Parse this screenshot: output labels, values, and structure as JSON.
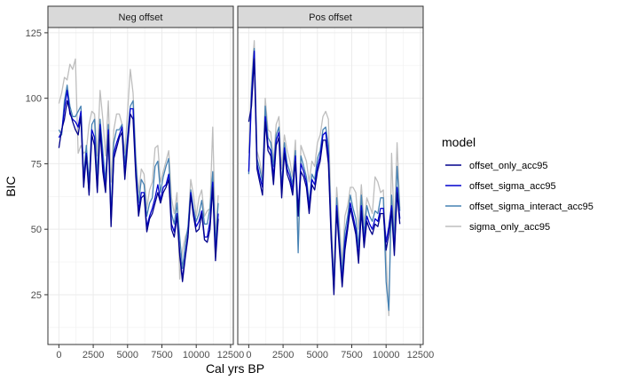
{
  "chart_data": {
    "type": "line",
    "xlabel": "Cal yrs BP",
    "ylabel": "BIC",
    "xlim": [
      -800,
      12700
    ],
    "ylim": [
      6,
      127
    ],
    "x_ticks": [
      0,
      2500,
      5000,
      7500,
      10000,
      12500
    ],
    "x_tick_labels": [
      "0",
      "2500",
      "5000",
      "7500",
      "10000",
      "12500"
    ],
    "y_ticks": [
      25,
      50,
      75,
      100,
      125
    ],
    "y_tick_labels": [
      "25",
      "50",
      "75",
      "100",
      "125"
    ],
    "grid": true,
    "legend_title": "model",
    "legend_position": "right",
    "series_styles": [
      {
        "name": "offset_only_acc95",
        "color": "#00008b"
      },
      {
        "name": "offset_sigma_acc95",
        "color": "#0000cd"
      },
      {
        "name": "offset_sigma_interact_acc95",
        "color": "#4682b4"
      },
      {
        "name": "sigma_only_acc95",
        "color": "#bebebe"
      }
    ],
    "panels": [
      {
        "label": "Neg offset",
        "x": [
          0,
          200,
          400,
          600,
          800,
          1000,
          1200,
          1400,
          1600,
          1800,
          2000,
          2200,
          2400,
          2600,
          2800,
          3000,
          3200,
          3400,
          3600,
          3800,
          4000,
          4200,
          4400,
          4600,
          4800,
          5000,
          5200,
          5400,
          5600,
          5800,
          6000,
          6200,
          6400,
          6600,
          6800,
          7000,
          7200,
          7400,
          7600,
          7800,
          8000,
          8200,
          8400,
          8600,
          8800,
          9000,
          9200,
          9400,
          9600,
          9800,
          10000,
          10200,
          10400,
          10600,
          10800,
          11000,
          11200,
          11400,
          11600,
          11800,
          12000
        ],
        "series": [
          {
            "name": "offset_only_acc95",
            "values": [
              81,
              88,
              92,
              99,
              95,
              91,
              88,
              86,
              93,
              66,
              78,
              63,
              86,
              82,
              64,
              88,
              72,
              64,
              86,
              51,
              77,
              81,
              85,
              87,
              69,
              82,
              94,
              92,
              70,
              55,
              62,
              63,
              49,
              54,
              56,
              60,
              64,
              60,
              64,
              66,
              69,
              50,
              47,
              55,
              40,
              30,
              39,
              47,
              63,
              55,
              49,
              50,
              56,
              46,
              45,
              50,
              66,
              38,
              54,
              null,
              null
            ]
          },
          {
            "name": "offset_sigma_acc95",
            "values": [
              85,
              87,
              96,
              103,
              94,
              92,
              91,
              89,
              95,
              68,
              79,
              64,
              88,
              85,
              65,
              90,
              76,
              65,
              88,
              53,
              79,
              83,
              86,
              89,
              71,
              84,
              96,
              96,
              72,
              57,
              64,
              64,
              51,
              55,
              58,
              62,
              67,
              61,
              66,
              67,
              71,
              52,
              49,
              56,
              41,
              31,
              40,
              48,
              64,
              56,
              51,
              53,
              57,
              47,
              47,
              53,
              68,
              40,
              56,
              null,
              null
            ]
          },
          {
            "name": "offset_sigma_interact_acc95",
            "values": [
              88,
              86,
              99,
              105,
              97,
              93,
              93,
              95,
              97,
              70,
              82,
              68,
              90,
              92,
              70,
              92,
              80,
              68,
              90,
              56,
              83,
              88,
              88,
              90,
              75,
              86,
              97,
              99,
              76,
              60,
              69,
              67,
              55,
              60,
              62,
              74,
              76,
              64,
              70,
              74,
              77,
              56,
              52,
              60,
              47,
              35,
              44,
              51,
              65,
              58,
              53,
              56,
              61,
              52,
              52,
              58,
              72,
              44,
              60,
              null,
              null
            ]
          },
          {
            "name": "sigma_only_acc95",
            "values": [
              98,
              102,
              108,
              107,
              113,
              111,
              115,
              79,
              82,
              79,
              80,
              90,
              95,
              94,
              78,
              103,
              92,
              78,
              99,
              68,
              88,
              94,
              94,
              90,
              79,
              95,
              111,
              102,
              78,
              64,
              73,
              71,
              58,
              65,
              68,
              81,
              82,
              68,
              72,
              76,
              80,
              62,
              56,
              64,
              31,
              42,
              47,
              50,
              69,
              63,
              55,
              62,
              65,
              55,
              57,
              58,
              89,
              47,
              63,
              null,
              null
            ]
          }
        ]
      },
      {
        "label": "Pos offset",
        "x": [
          0,
          200,
          400,
          600,
          800,
          1000,
          1200,
          1400,
          1600,
          1800,
          2000,
          2200,
          2400,
          2600,
          2800,
          3000,
          3200,
          3400,
          3600,
          3800,
          4000,
          4200,
          4400,
          4600,
          4800,
          5000,
          5200,
          5400,
          5600,
          5800,
          6000,
          6200,
          6400,
          6600,
          6800,
          7000,
          7200,
          7400,
          7600,
          7800,
          8000,
          8200,
          8400,
          8600,
          8800,
          9000,
          9200,
          9400,
          9600,
          9800,
          10000,
          10200,
          10400,
          10600,
          10800,
          11000,
          11200,
          11400,
          11600,
          11800,
          12000
        ],
        "series": [
          {
            "name": "offset_only_acc95",
            "values": [
              91,
              97,
              115,
              73,
              68,
              63,
              91,
              80,
              78,
              67,
              82,
              85,
              62,
              79,
              71,
              68,
              63,
              76,
              55,
              72,
              70,
              66,
              56,
              67,
              65,
              72,
              76,
              84,
              84,
              75,
              46,
              25,
              57,
              42,
              28,
              42,
              50,
              58,
              53,
              48,
              37,
              57,
              43,
              53,
              50,
              48,
              52,
              51,
              56,
              56,
              42,
              48,
              57,
              40,
              64,
              52,
              null,
              null,
              null,
              null,
              null
            ]
          },
          {
            "name": "offset_sigma_acc95",
            "values": [
              72,
              100,
              118,
              75,
              70,
              66,
              93,
              82,
              80,
              70,
              84,
              87,
              64,
              81,
              73,
              70,
              65,
              78,
              57,
              75,
              72,
              68,
              58,
              69,
              67,
              74,
              78,
              86,
              87,
              78,
              48,
              27,
              59,
              44,
              30,
              45,
              52,
              60,
              55,
              50,
              39,
              59,
              45,
              55,
              52,
              50,
              54,
              53,
              58,
              58,
              45,
              51,
              59,
              42,
              66,
              54,
              null,
              null,
              null,
              null,
              null
            ]
          },
          {
            "name": "offset_sigma_interact_acc95",
            "values": [
              71,
              103,
              119,
              77,
              73,
              68,
              97,
              85,
              83,
              74,
              86,
              89,
              66,
              83,
              75,
              72,
              67,
              80,
              41,
              78,
              74,
              70,
              60,
              71,
              69,
              77,
              80,
              88,
              89,
              82,
              50,
              29,
              62,
              47,
              33,
              49,
              55,
              63,
              58,
              54,
              43,
              63,
              48,
              59,
              55,
              53,
              57,
              56,
              62,
              62,
              30,
              19,
              63,
              46,
              74,
              57,
              null,
              null,
              null,
              null,
              null
            ]
          },
          {
            "name": "sigma_only_acc95",
            "values": [
              79,
              107,
              122,
              80,
              76,
              70,
              100,
              88,
              87,
              76,
              90,
              93,
              73,
              86,
              80,
              76,
              70,
              84,
              44,
              82,
              79,
              76,
              68,
              76,
              74,
              83,
              86,
              93,
              95,
              92,
              55,
              32,
              66,
              52,
              37,
              55,
              59,
              66,
              66,
              64,
              50,
              67,
              52,
              62,
              59,
              56,
              70,
              68,
              64,
              65,
              40,
              17,
              79,
              50,
              83,
              58,
              null,
              null,
              null,
              null,
              null
            ]
          }
        ]
      }
    ]
  }
}
